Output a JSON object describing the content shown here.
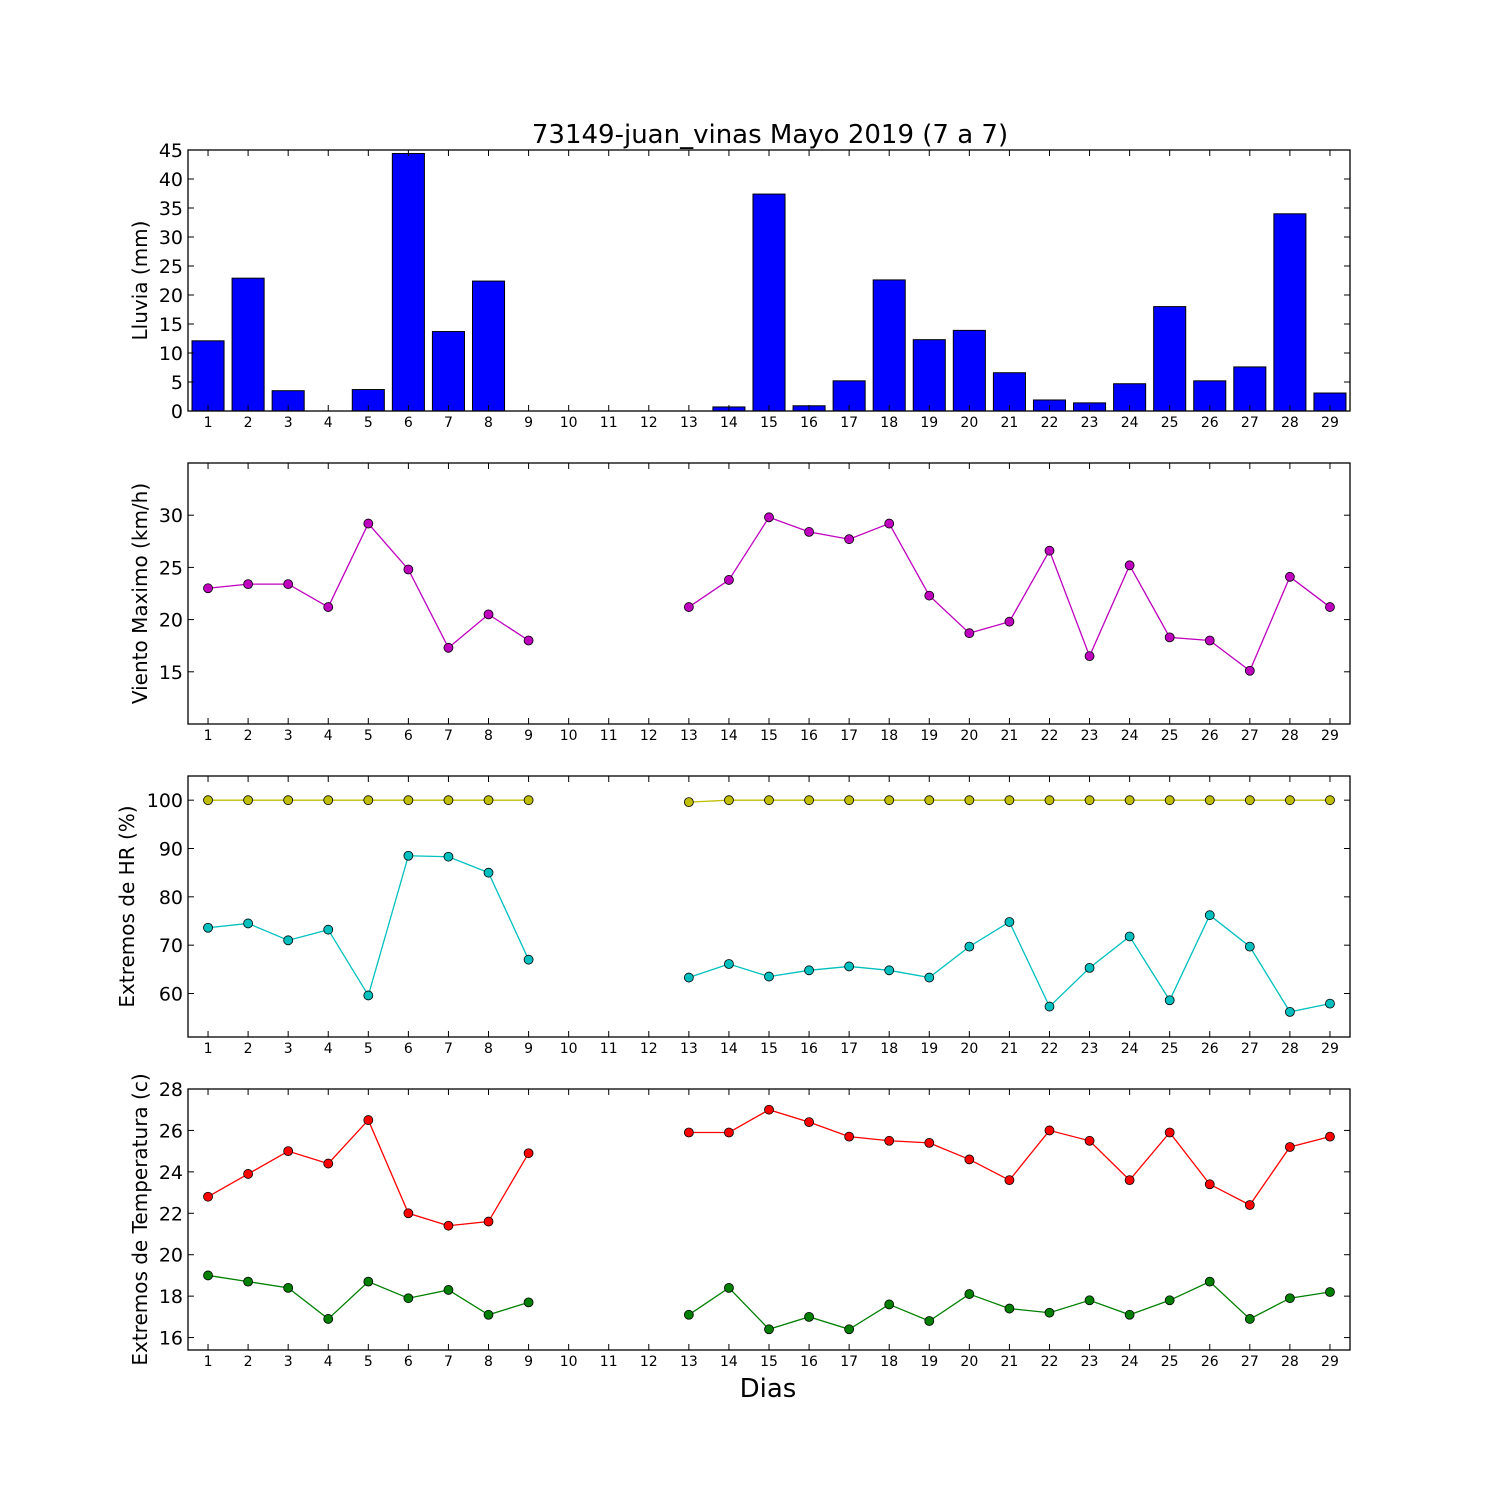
{
  "chart_data": [
    {
      "type": "bar",
      "title": "73149-juan_vinas Mayo 2019  (7 a 7)",
      "xlabel": "",
      "ylabel": "Lluvia (mm)",
      "categories": [
        1,
        2,
        3,
        4,
        5,
        6,
        7,
        8,
        9,
        10,
        11,
        12,
        13,
        14,
        15,
        16,
        17,
        18,
        19,
        20,
        21,
        22,
        23,
        24,
        25,
        26,
        27,
        28,
        29
      ],
      "values": [
        12.1,
        22.9,
        3.5,
        0,
        3.7,
        44.4,
        13.7,
        22.4,
        0,
        0,
        0,
        0,
        0,
        0.7,
        37.4,
        0.9,
        5.2,
        22.6,
        12.3,
        13.9,
        6.6,
        1.9,
        1.4,
        4.7,
        18.0,
        5.2,
        7.6,
        34.0,
        3.1
      ],
      "ylim": [
        0,
        45
      ],
      "yticks": [
        0,
        5,
        10,
        15,
        20,
        25,
        30,
        35,
        40,
        45
      ],
      "color": "#0000ff"
    },
    {
      "type": "line",
      "ylabel": "Viento Maximo (km/h)",
      "x": [
        1,
        2,
        3,
        4,
        5,
        6,
        7,
        8,
        9,
        10,
        11,
        12,
        13,
        14,
        15,
        16,
        17,
        18,
        19,
        20,
        21,
        22,
        23,
        24,
        25,
        26,
        27,
        28,
        29
      ],
      "series": [
        {
          "values": [
            23.0,
            23.4,
            23.4,
            21.2,
            29.2,
            24.8,
            17.3,
            20.5,
            18.0,
            null,
            null,
            null,
            21.2,
            23.8,
            29.8,
            28.4,
            27.7,
            29.2,
            22.3,
            18.7,
            19.8,
            26.6,
            16.5,
            25.2,
            18.3,
            18.0,
            15.1,
            24.1,
            21.2
          ],
          "color": "#bf00bf"
        }
      ],
      "ylim": [
        10,
        35
      ],
      "yticks": [
        15,
        20,
        25,
        30
      ]
    },
    {
      "type": "line",
      "ylabel": "Extremos de HR (%)",
      "x": [
        1,
        2,
        3,
        4,
        5,
        6,
        7,
        8,
        9,
        10,
        11,
        12,
        13,
        14,
        15,
        16,
        17,
        18,
        19,
        20,
        21,
        22,
        23,
        24,
        25,
        26,
        27,
        28,
        29
      ],
      "series": [
        {
          "values": [
            100,
            100,
            100,
            100,
            100,
            100,
            100,
            100,
            100,
            null,
            null,
            null,
            99.6,
            100,
            100,
            100,
            100,
            100,
            100,
            100,
            100,
            100,
            100,
            100,
            100,
            100,
            100,
            100,
            100
          ],
          "color": "#bfbf00"
        },
        {
          "values": [
            73.6,
            74.5,
            71.0,
            73.2,
            59.6,
            88.5,
            88.3,
            85.0,
            67.0,
            null,
            null,
            null,
            63.3,
            66.1,
            63.5,
            64.8,
            65.6,
            64.8,
            63.3,
            69.7,
            74.8,
            57.3,
            65.3,
            71.8,
            58.6,
            76.2,
            69.7,
            56.2,
            57.9
          ],
          "color": "#00bfbf"
        }
      ],
      "ylim": [
        51,
        105
      ],
      "yticks": [
        60,
        70,
        80,
        90,
        100
      ]
    },
    {
      "type": "line",
      "ylabel": "Extremos de Temperatura (c)",
      "xlabel": "Dias",
      "x": [
        1,
        2,
        3,
        4,
        5,
        6,
        7,
        8,
        9,
        10,
        11,
        12,
        13,
        14,
        15,
        16,
        17,
        18,
        19,
        20,
        21,
        22,
        23,
        24,
        25,
        26,
        27,
        28,
        29
      ],
      "series": [
        {
          "values": [
            22.8,
            23.9,
            25.0,
            24.4,
            26.5,
            22.0,
            21.4,
            21.6,
            24.9,
            null,
            null,
            null,
            25.9,
            25.9,
            27.0,
            26.4,
            25.7,
            25.5,
            25.4,
            24.6,
            23.6,
            26.0,
            25.5,
            23.6,
            25.9,
            23.4,
            22.4,
            25.2,
            25.7
          ],
          "color": "#ff0000"
        },
        {
          "values": [
            19.0,
            18.7,
            18.4,
            16.9,
            18.7,
            17.9,
            18.3,
            17.1,
            17.7,
            null,
            null,
            null,
            17.1,
            18.4,
            16.4,
            17.0,
            16.4,
            17.6,
            16.8,
            18.1,
            17.4,
            17.2,
            17.8,
            17.1,
            17.8,
            18.7,
            16.9,
            17.9,
            18.2
          ],
          "color": "#008000"
        }
      ],
      "ylim": [
        15.4,
        28
      ],
      "yticks": [
        16,
        18,
        20,
        22,
        24,
        26,
        28
      ]
    }
  ]
}
